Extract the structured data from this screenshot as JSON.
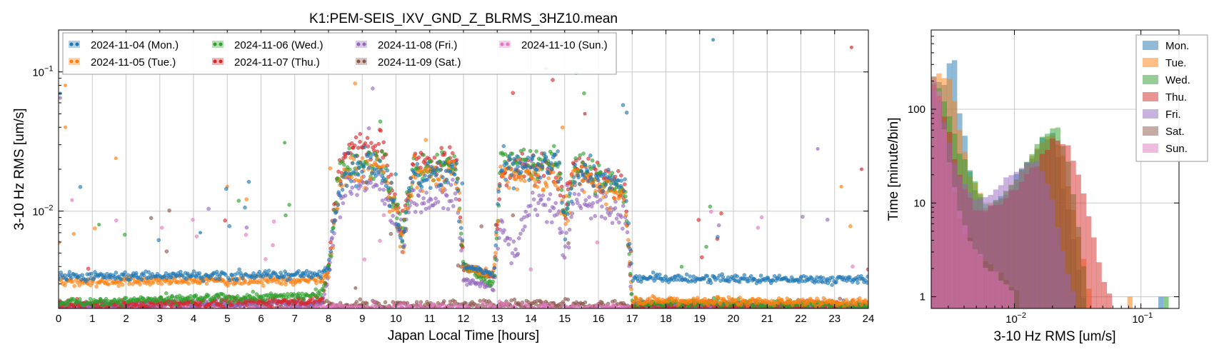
{
  "chart_data": [
    {
      "type": "scatter",
      "title": "K1:PEM-SEIS_IXV_GND_Z_BLRMS_3HZ10.mean",
      "xlabel": "Japan Local Time [hours]",
      "ylabel": "3-10 Hz RMS [um/s]",
      "xlim": [
        0,
        24
      ],
      "ylim": [
        0.002,
        0.2
      ],
      "yscale": "log",
      "grid": true,
      "legend_position": "top-left",
      "x_ticks": [
        "0",
        "1",
        "2",
        "3",
        "4",
        "5",
        "6",
        "7",
        "8",
        "9",
        "10",
        "11",
        "12",
        "13",
        "14",
        "15",
        "16",
        "17",
        "18",
        "19",
        "20",
        "21",
        "22",
        "23",
        "24"
      ],
      "y_ticks": [
        {
          "value": 0.01,
          "label": "10",
          "exp": "−2"
        },
        {
          "value": 0.1,
          "label": "10",
          "exp": "−1"
        }
      ],
      "series": [
        {
          "name": "2024-11-04 (Mon.)",
          "color": "#1f77b4",
          "profile": [
            [
              0,
              0.0034
            ],
            [
              7.8,
              0.0035
            ],
            [
              8.0,
              0.004
            ],
            [
              8.3,
              0.015
            ],
            [
              8.6,
              0.02
            ],
            [
              9.6,
              0.02
            ],
            [
              9.9,
              0.012
            ],
            [
              10.2,
              0.006
            ],
            [
              10.5,
              0.018
            ],
            [
              11.8,
              0.02
            ],
            [
              12.0,
              0.004
            ],
            [
              12.9,
              0.0035
            ],
            [
              13.1,
              0.02
            ],
            [
              14.8,
              0.021
            ],
            [
              15.0,
              0.008
            ],
            [
              15.3,
              0.02
            ],
            [
              16.8,
              0.015
            ],
            [
              17.0,
              0.0033
            ],
            [
              24,
              0.0032
            ]
          ],
          "outliers": [
            [
              19.4,
              0.17
            ],
            [
              0.05,
              0.07
            ],
            [
              4.2,
              0.007
            ]
          ]
        },
        {
          "name": "2024-11-05 (Tue.)",
          "color": "#ff7f0e",
          "profile": [
            [
              0,
              0.0031
            ],
            [
              7.8,
              0.0032
            ],
            [
              8.0,
              0.0036
            ],
            [
              8.3,
              0.014
            ],
            [
              8.6,
              0.019
            ],
            [
              9.6,
              0.02
            ],
            [
              9.9,
              0.011
            ],
            [
              10.2,
              0.006
            ],
            [
              10.5,
              0.017
            ],
            [
              11.8,
              0.02
            ],
            [
              12.0,
              0.004
            ],
            [
              12.9,
              0.0035
            ],
            [
              13.1,
              0.018
            ],
            [
              14.8,
              0.018
            ],
            [
              15.0,
              0.008
            ],
            [
              15.3,
              0.018
            ],
            [
              16.8,
              0.013
            ],
            [
              17.0,
              0.0023
            ],
            [
              24,
              0.0022
            ]
          ],
          "outliers": [
            [
              0.2,
              0.08
            ],
            [
              0.2,
              0.04
            ],
            [
              1.7,
              0.024
            ],
            [
              5.0,
              0.015
            ],
            [
              23.2,
              0.015
            ]
          ]
        },
        {
          "name": "2024-11-06 (Wed.)",
          "color": "#2ca02c",
          "profile": [
            [
              0,
              0.0022
            ],
            [
              7.8,
              0.0025
            ],
            [
              8.0,
              0.004
            ],
            [
              8.3,
              0.018
            ],
            [
              8.6,
              0.022
            ],
            [
              9.6,
              0.022
            ],
            [
              9.9,
              0.012
            ],
            [
              10.2,
              0.007
            ],
            [
              10.5,
              0.02
            ],
            [
              11.8,
              0.022
            ],
            [
              12.0,
              0.004
            ],
            [
              12.9,
              0.003
            ],
            [
              13.1,
              0.022
            ],
            [
              14.8,
              0.022
            ],
            [
              15.0,
              0.009
            ],
            [
              15.3,
              0.022
            ],
            [
              16.8,
              0.013
            ],
            [
              17.0,
              0.0022
            ],
            [
              24,
              0.0021
            ]
          ],
          "outliers": [
            [
              6.7,
              0.031
            ],
            [
              1.2,
              0.008
            ]
          ]
        },
        {
          "name": "2024-11-07 (Thu.)",
          "color": "#d62728",
          "profile": [
            [
              0,
              0.0021
            ],
            [
              7.8,
              0.0023
            ],
            [
              8.0,
              0.004
            ],
            [
              8.3,
              0.02
            ],
            [
              8.6,
              0.03
            ],
            [
              9.6,
              0.03
            ],
            [
              9.9,
              0.013
            ],
            [
              10.2,
              0.008
            ],
            [
              10.5,
              0.022
            ],
            [
              11.8,
              0.024
            ],
            [
              12.0,
              0.004
            ],
            [
              12.9,
              0.0033
            ],
            [
              13.1,
              0.02
            ],
            [
              14.8,
              0.02
            ],
            [
              15.0,
              0.01
            ],
            [
              15.3,
              0.022
            ],
            [
              16.8,
              0.014
            ],
            [
              17.0,
              0.0021
            ],
            [
              24,
              0.002
            ]
          ],
          "outliers": [
            [
              23.5,
              0.15
            ],
            [
              15.6,
              0.05
            ],
            [
              23.8,
              0.02
            ]
          ]
        },
        {
          "name": "2024-11-08 (Fri.)",
          "color": "#9467bd",
          "profile": [
            [
              0,
              0.0021
            ],
            [
              7.8,
              0.0022
            ],
            [
              8.0,
              0.0035
            ],
            [
              8.3,
              0.012
            ],
            [
              8.6,
              0.016
            ],
            [
              9.6,
              0.015
            ],
            [
              9.9,
              0.009
            ],
            [
              10.2,
              0.006
            ],
            [
              10.5,
              0.012
            ],
            [
              11.8,
              0.013
            ],
            [
              12.0,
              0.0032
            ],
            [
              12.9,
              0.0028
            ],
            [
              13.1,
              0.008
            ],
            [
              13.5,
              0.005
            ],
            [
              14.0,
              0.012
            ],
            [
              14.8,
              0.01
            ],
            [
              15.0,
              0.005
            ],
            [
              15.3,
              0.013
            ],
            [
              16.8,
              0.009
            ],
            [
              17.0,
              0.0021
            ],
            [
              24,
              0.002
            ]
          ],
          "outliers": [
            [
              22.5,
              0.028
            ],
            [
              0.05,
              0.065
            ]
          ]
        },
        {
          "name": "2024-11-09 (Sat.)",
          "color": "#8c564b",
          "profile": [
            [
              0,
              0.0021
            ],
            [
              24,
              0.0021
            ]
          ],
          "outliers": [
            [
              8.8,
              0.0028
            ]
          ]
        },
        {
          "name": "2024-11-10 (Sun.)",
          "color": "#e377c2",
          "profile": [
            [
              0,
              0.002
            ],
            [
              24,
              0.002
            ]
          ],
          "outliers": [
            [
              0.4,
              0.012
            ]
          ]
        }
      ]
    },
    {
      "type": "histogram",
      "xlabel": "3-10 Hz RMS [um/s]",
      "ylabel": "Time [minute/bin]",
      "xlim": [
        0.0022,
        0.2
      ],
      "ylim": [
        0.75,
        700
      ],
      "xscale": "log",
      "yscale": "log",
      "grid": true,
      "legend_position": "top-right",
      "x_ticks": [
        {
          "value": 0.01,
          "label": "10",
          "exp": "−2"
        },
        {
          "value": 0.1,
          "label": "10",
          "exp": "−1"
        }
      ],
      "y_ticks": [
        {
          "value": 1,
          "label": "1"
        },
        {
          "value": 10,
          "label": "10"
        },
        {
          "value": 100,
          "label": "100"
        }
      ],
      "series": [
        {
          "name": "Mon.",
          "color": "#1f77b4",
          "profile": [
            [
              0.0022,
              240
            ],
            [
              0.0028,
              180
            ],
            [
              0.0031,
              330
            ],
            [
              0.0034,
              330
            ],
            [
              0.0037,
              90
            ],
            [
              0.0045,
              20
            ],
            [
              0.006,
              8
            ],
            [
              0.008,
              12
            ],
            [
              0.012,
              25
            ],
            [
              0.016,
              45
            ],
            [
              0.02,
              55
            ],
            [
              0.025,
              12
            ],
            [
              0.03,
              3
            ],
            [
              0.035,
              1
            ]
          ]
        },
        {
          "name": "Tue.",
          "color": "#ff7f0e",
          "profile": [
            [
              0.0022,
              220
            ],
            [
              0.0027,
              200
            ],
            [
              0.003,
              260
            ],
            [
              0.0033,
              130
            ],
            [
              0.0037,
              60
            ],
            [
              0.0045,
              18
            ],
            [
              0.006,
              9
            ],
            [
              0.008,
              12
            ],
            [
              0.012,
              25
            ],
            [
              0.016,
              45
            ],
            [
              0.02,
              55
            ],
            [
              0.024,
              35
            ],
            [
              0.028,
              10
            ],
            [
              0.034,
              3
            ],
            [
              0.04,
              1
            ]
          ]
        },
        {
          "name": "Wed.",
          "color": "#2ca02c",
          "profile": [
            [
              0.0022,
              220
            ],
            [
              0.0026,
              170
            ],
            [
              0.003,
              90
            ],
            [
              0.0035,
              40
            ],
            [
              0.0045,
              20
            ],
            [
              0.006,
              9
            ],
            [
              0.008,
              12
            ],
            [
              0.012,
              25
            ],
            [
              0.016,
              45
            ],
            [
              0.021,
              75
            ],
            [
              0.025,
              40
            ],
            [
              0.03,
              10
            ],
            [
              0.035,
              2
            ]
          ]
        },
        {
          "name": "Thu.",
          "color": "#d62728",
          "profile": [
            [
              0.0022,
              200
            ],
            [
              0.0026,
              120
            ],
            [
              0.003,
              60
            ],
            [
              0.0036,
              20
            ],
            [
              0.005,
              8
            ],
            [
              0.008,
              10
            ],
            [
              0.012,
              18
            ],
            [
              0.016,
              30
            ],
            [
              0.021,
              50
            ],
            [
              0.026,
              40
            ],
            [
              0.032,
              20
            ],
            [
              0.038,
              8
            ],
            [
              0.045,
              3
            ],
            [
              0.055,
              1
            ]
          ]
        },
        {
          "name": "Fri.",
          "color": "#9467bd",
          "profile": [
            [
              0.0022,
              200
            ],
            [
              0.0026,
              110
            ],
            [
              0.003,
              50
            ],
            [
              0.0036,
              20
            ],
            [
              0.005,
              10
            ],
            [
              0.007,
              14
            ],
            [
              0.009,
              18
            ],
            [
              0.011,
              25
            ],
            [
              0.013,
              30
            ],
            [
              0.015,
              26
            ],
            [
              0.018,
              18
            ],
            [
              0.022,
              6
            ],
            [
              0.026,
              2
            ],
            [
              0.03,
              1
            ]
          ]
        },
        {
          "name": "Sat.",
          "color": "#8c564b",
          "profile": [
            [
              0.0022,
              230
            ],
            [
              0.0025,
              140
            ],
            [
              0.0029,
              40
            ],
            [
              0.0034,
              12
            ],
            [
              0.004,
              5
            ],
            [
              0.005,
              3
            ],
            [
              0.007,
              2
            ],
            [
              0.01,
              1.2
            ]
          ]
        },
        {
          "name": "Sun.",
          "color": "#e377c2",
          "profile": [
            [
              0.0022,
              250
            ],
            [
              0.0025,
              160
            ],
            [
              0.0028,
              60
            ],
            [
              0.0032,
              20
            ],
            [
              0.0037,
              8
            ],
            [
              0.0045,
              4
            ],
            [
              0.006,
              2
            ],
            [
              0.009,
              1.2
            ]
          ]
        }
      ],
      "outliers": [
        {
          "x": 0.079,
          "series": 1
        },
        {
          "x": 0.14,
          "series": 0
        },
        {
          "x": 0.155,
          "series": 2
        }
      ]
    }
  ]
}
